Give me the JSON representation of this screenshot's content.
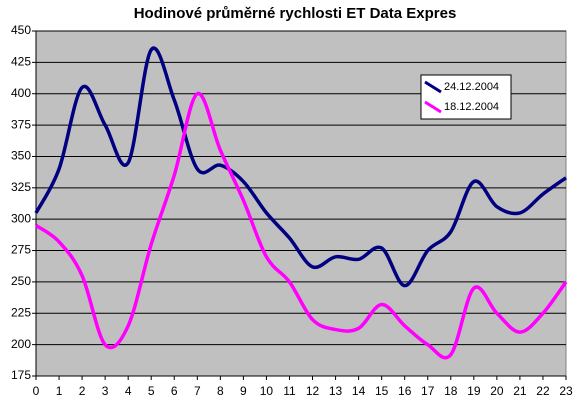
{
  "chart_data": {
    "type": "line",
    "title": "Hodinové průměrné rychlosti ET Data Expres",
    "x": [
      0,
      1,
      2,
      3,
      4,
      5,
      6,
      7,
      8,
      9,
      10,
      11,
      12,
      13,
      14,
      15,
      16,
      17,
      18,
      19,
      20,
      21,
      22,
      23
    ],
    "xlim": [
      0,
      23
    ],
    "xticks": [
      0,
      1,
      2,
      3,
      4,
      5,
      6,
      7,
      8,
      9,
      10,
      11,
      12,
      13,
      14,
      15,
      16,
      17,
      18,
      19,
      20,
      21,
      22,
      23
    ],
    "ylim": [
      175,
      450
    ],
    "yticks": [
      175,
      200,
      225,
      250,
      275,
      300,
      325,
      350,
      375,
      400,
      425,
      450
    ],
    "grid": true,
    "legend": "upper right",
    "background": "#c0c0c0",
    "series": [
      {
        "name": "24.12.2004",
        "color": "#000080",
        "values": [
          305,
          340,
          405,
          375,
          345,
          435,
          395,
          340,
          343,
          330,
          305,
          285,
          262,
          270,
          268,
          277,
          247,
          275,
          290,
          330,
          310,
          305,
          320,
          333
        ]
      },
      {
        "name": "18.12.2004",
        "color": "#ff00ff",
        "values": [
          295,
          282,
          255,
          200,
          215,
          280,
          335,
          400,
          355,
          315,
          270,
          250,
          220,
          212,
          213,
          232,
          215,
          200,
          192,
          245,
          225,
          210,
          225,
          250
        ]
      }
    ]
  }
}
